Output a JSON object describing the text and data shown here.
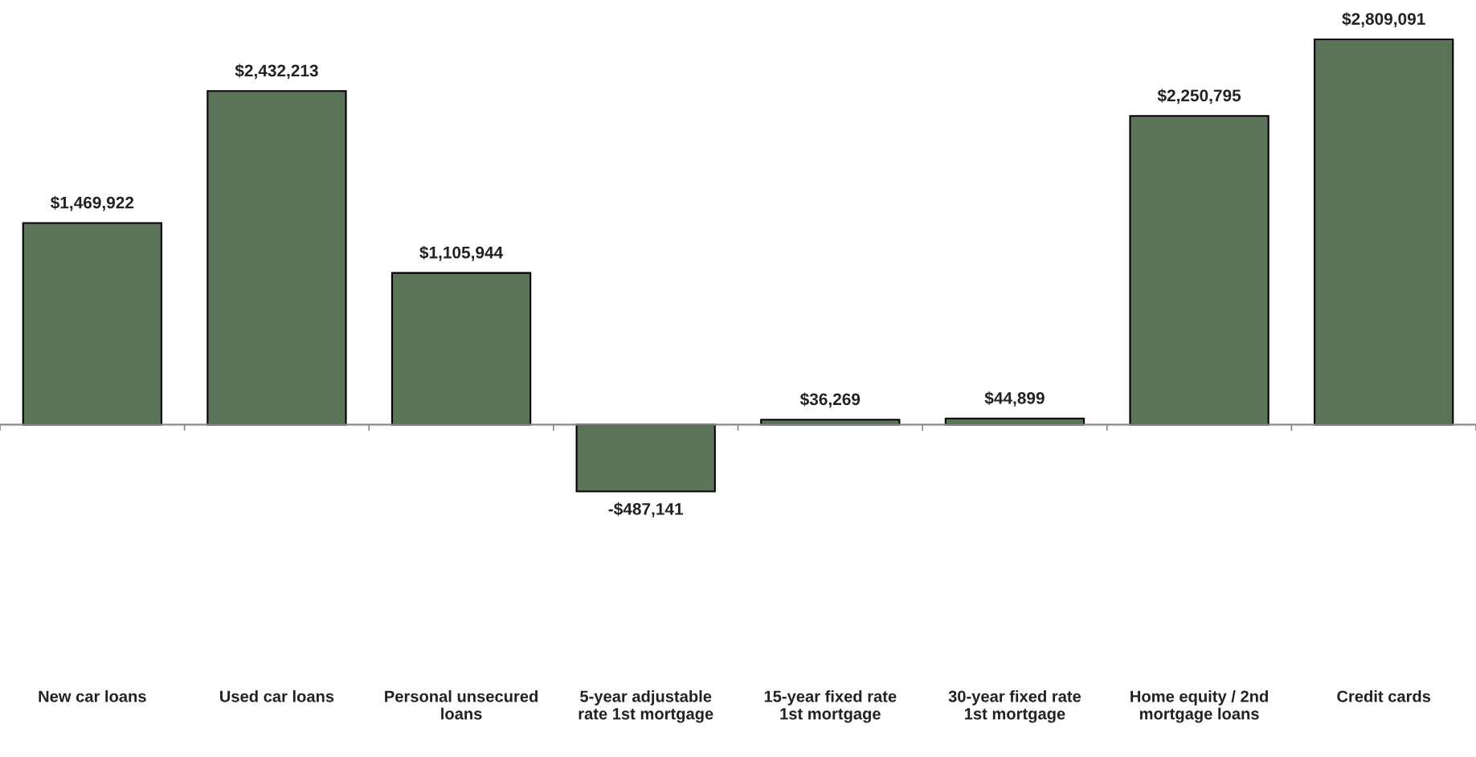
{
  "chart_data": {
    "type": "bar",
    "categories": [
      "New car loans",
      "Used car loans",
      "Personal unsecured\nloans",
      "5-year adjustable\nrate 1st mortgage",
      "15-year fixed rate\n1st mortgage",
      "30-year fixed rate\n1st mortgage",
      "Home equity / 2nd\nmortgage loans",
      "Credit cards"
    ],
    "values": [
      1469922,
      2432213,
      1105944,
      -487141,
      36269,
      44899,
      2250795,
      2809091
    ],
    "value_labels": [
      "$1,469,922",
      "$2,432,213",
      "$1,105,944",
      "-$487,141",
      "$36,269",
      "$44,899",
      "$2,250,795",
      "$2,809,091"
    ],
    "color": "#5a7359",
    "grid": false,
    "legend": false
  }
}
